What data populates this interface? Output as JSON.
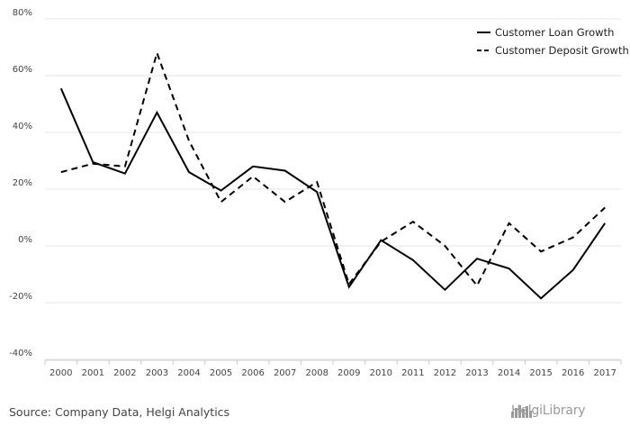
{
  "chart_data": {
    "type": "line",
    "title": "",
    "xlabel": "",
    "ylabel": "",
    "categories": [
      "2000",
      "2001",
      "2002",
      "2003",
      "2004",
      "2005",
      "2006",
      "2007",
      "2008",
      "2009",
      "2010",
      "2011",
      "2012",
      "2013",
      "2014",
      "2015",
      "2016",
      "2017"
    ],
    "ylim": [
      -40,
      80
    ],
    "yticks": [
      -40,
      -20,
      0,
      20,
      40,
      60,
      80
    ],
    "ytick_labels": [
      "-40%",
      "-20%",
      "0%",
      "20%",
      "40%",
      "60%",
      "80%"
    ],
    "grid": true,
    "legend_position": "top-right",
    "series": [
      {
        "name": "Customer Loan Growth",
        "style": "solid",
        "color": "#000000",
        "values": [
          55.5,
          29.5,
          25.5,
          47.0,
          26.0,
          19.5,
          28.0,
          26.5,
          19.0,
          -14.5,
          2.0,
          -5.0,
          -15.5,
          -4.5,
          -8.0,
          -18.5,
          -8.5,
          8.0
        ]
      },
      {
        "name": "Customer Deposit Growth",
        "style": "dashed",
        "color": "#000000",
        "values": [
          26.0,
          29.0,
          28.0,
          68.0,
          37.0,
          15.5,
          24.5,
          15.5,
          22.5,
          -13.5,
          1.5,
          8.5,
          0.0,
          -14.0,
          8.0,
          -2.0,
          3.0,
          13.5
        ]
      }
    ]
  },
  "footer": {
    "source": "Source: Company Data, Helgi Analytics",
    "brand_name": "HelgiLibrary",
    "brand_icon": "city-skyline-icon"
  }
}
